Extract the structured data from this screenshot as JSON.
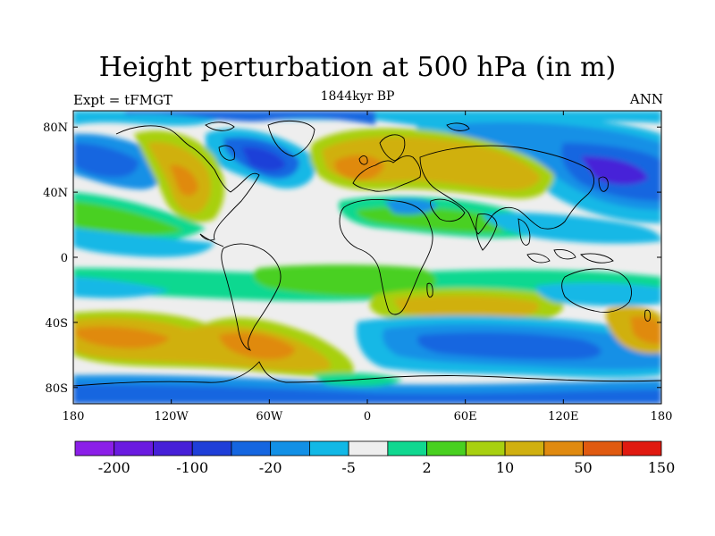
{
  "title": "Height perturbation at 500 hPa (in m)",
  "subtitle_left": "Expt = tFMGT",
  "subtitle_center": "1844kyr BP",
  "subtitle_right": "ANN",
  "map": {
    "lon_range": [
      -180,
      180
    ],
    "lat_range": [
      -90,
      90
    ],
    "lat_ticks": [
      {
        "lat": 80,
        "label": "80N"
      },
      {
        "lat": 40,
        "label": "40N"
      },
      {
        "lat": 0,
        "label": "0"
      },
      {
        "lat": -40,
        "label": "40S"
      },
      {
        "lat": -80,
        "label": "80S"
      }
    ],
    "lon_ticks": [
      {
        "lon": -180,
        "label": "180"
      },
      {
        "lon": -120,
        "label": "120W"
      },
      {
        "lon": -60,
        "label": "60W"
      },
      {
        "lon": 0,
        "label": "0"
      },
      {
        "lon": 60,
        "label": "60E"
      },
      {
        "lon": 120,
        "label": "120E"
      },
      {
        "lon": 180,
        "label": "180"
      }
    ]
  },
  "colorbar": {
    "colors": [
      "#8b1fe8",
      "#6a1be0",
      "#4620d8",
      "#1f3fd8",
      "#1566e0",
      "#1290e6",
      "#12b8e6",
      "#eeeeee",
      "#10d890",
      "#48d020",
      "#a8d010",
      "#d0b010",
      "#e08a10",
      "#e05a10",
      "#e01a10"
    ],
    "labels": [
      "-200",
      "-100",
      "-20",
      "-5",
      "2",
      "10",
      "50",
      "150"
    ]
  }
}
